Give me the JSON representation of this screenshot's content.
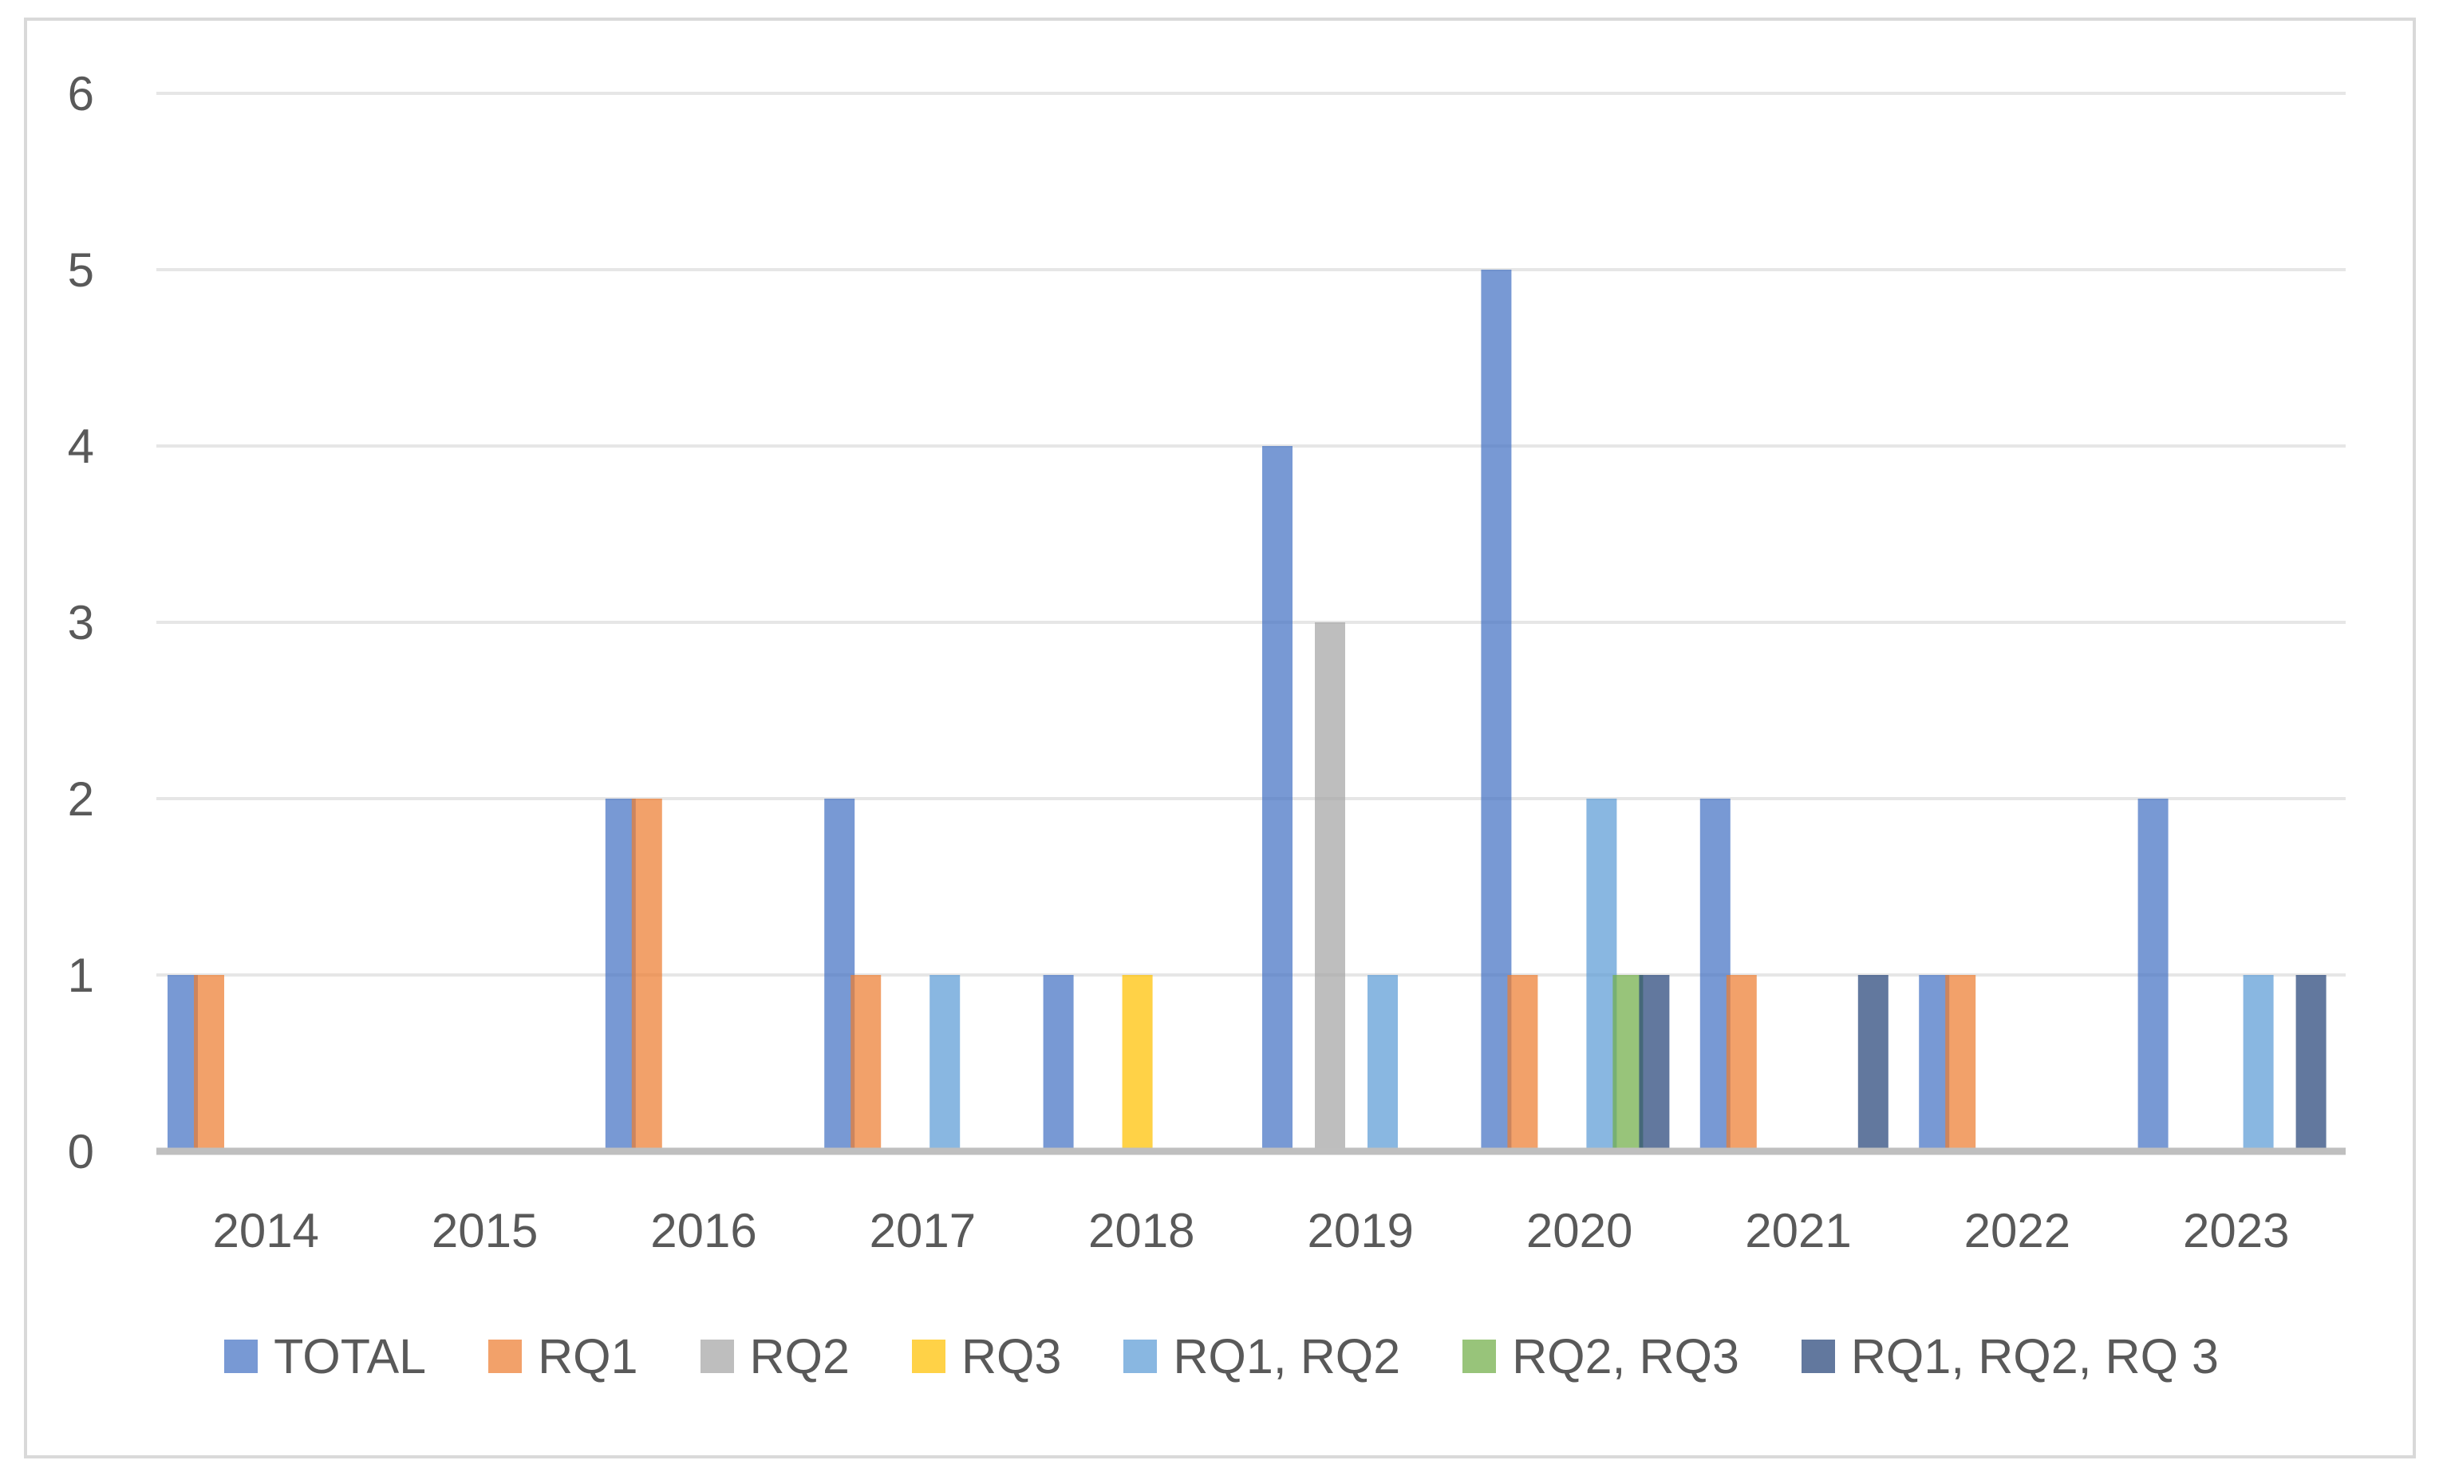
{
  "chart_data": {
    "type": "bar",
    "title": "",
    "xlabel": "",
    "ylabel": "",
    "ylim": [
      0,
      6
    ],
    "yticks": [
      "0",
      "1",
      "2",
      "3",
      "4",
      "5",
      "6"
    ],
    "grid": true,
    "legend_position": "bottom",
    "categories": [
      "2014",
      "2015",
      "2016",
      "2017",
      "2018",
      "2019",
      "2020",
      "2021",
      "2022",
      "2023"
    ],
    "series": [
      {
        "name": "TOTAL",
        "color": "#4472c4",
        "values": [
          1,
          0,
          2,
          2,
          1,
          4,
          5,
          2,
          1,
          2
        ]
      },
      {
        "name": "RQ1",
        "color": "#ed7d31",
        "values": [
          1,
          0,
          2,
          1,
          0,
          0,
          1,
          1,
          1,
          0
        ]
      },
      {
        "name": "RQ2",
        "color": "#a5a5a5",
        "values": [
          0,
          0,
          0,
          0,
          0,
          3,
          0,
          0,
          0,
          0
        ]
      },
      {
        "name": "RQ3",
        "color": "#ffc000",
        "values": [
          0,
          0,
          0,
          0,
          1,
          0,
          0,
          0,
          0,
          0
        ]
      },
      {
        "name": "RQ1, RQ2",
        "color": "#5b9bd5",
        "values": [
          0,
          0,
          0,
          1,
          0,
          1,
          2,
          0,
          0,
          1
        ]
      },
      {
        "name": "RQ2, RQ3",
        "color": "#70ad47",
        "values": [
          0,
          0,
          0,
          0,
          0,
          0,
          1,
          0,
          0,
          0
        ]
      },
      {
        "name": "RQ1, RQ2, RQ 3",
        "color": "#264478",
        "values": [
          0,
          0,
          0,
          0,
          0,
          0,
          1,
          1,
          0,
          1
        ]
      }
    ]
  }
}
